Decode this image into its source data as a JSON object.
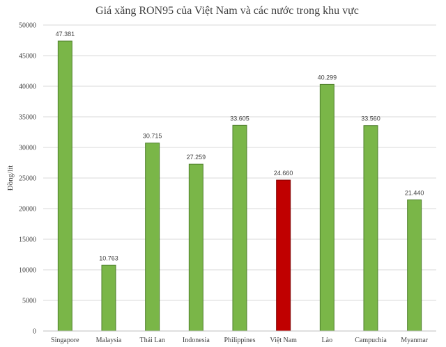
{
  "chart_data": {
    "type": "bar",
    "title": "Giá xăng RON95 của Việt Nam và các nước trong khu vực",
    "ylabel": "Đồng/lít",
    "xlabel": "",
    "ylim": [
      0,
      50000
    ],
    "yticks": [
      "0",
      "5000",
      "10000",
      "15000",
      "20000",
      "25000",
      "30000",
      "35000",
      "40000",
      "45000",
      "50000"
    ],
    "categories": [
      "Singapore",
      "Malaysia",
      "Thái Lan",
      "Indonesia",
      "Philippines",
      "Việt Nam",
      "Lào",
      "Campuchia",
      "Myanmar"
    ],
    "values": [
      47381,
      10763,
      30715,
      27259,
      33605,
      24660,
      40299,
      33560,
      21440
    ],
    "value_labels": [
      "47.381",
      "10.763",
      "30.715",
      "27.259",
      "33.605",
      "24.660",
      "40.299",
      "33.560",
      "21.440"
    ],
    "colors": {
      "default_bar": "#7ab648",
      "default_border": "#4e7f2c",
      "highlight_bar": "#c00000",
      "highlight_border": "#7f0000"
    },
    "highlight_category": "Việt Nam",
    "grid": true,
    "legend": "none"
  }
}
